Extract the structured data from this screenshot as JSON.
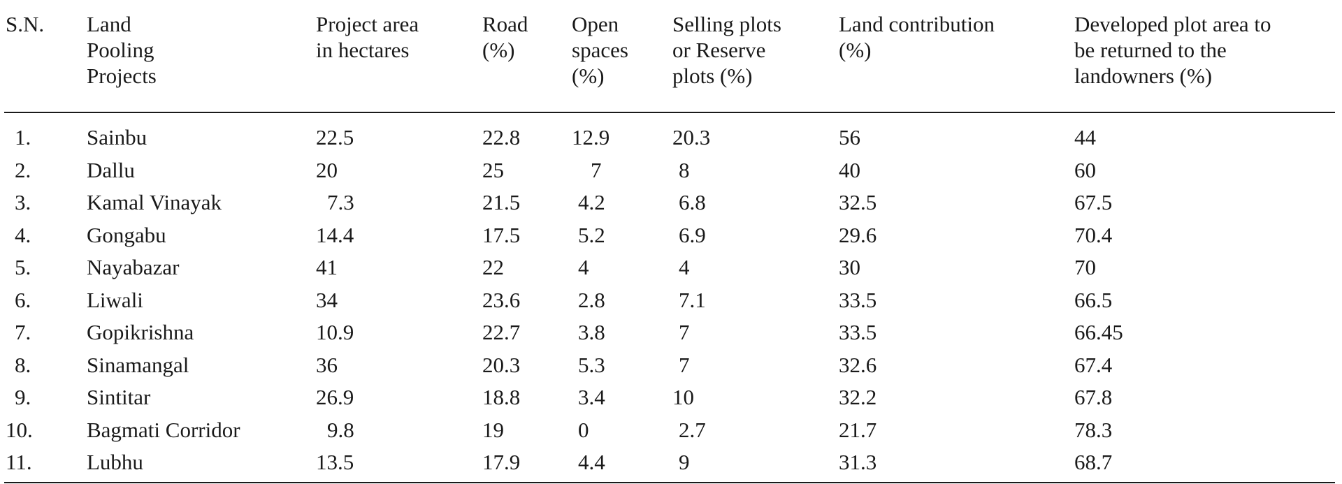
{
  "table": {
    "headers": [
      "S.N.",
      "Land\nPooling\nProjects",
      "Project area\nin hectares",
      "Road\n(%)",
      "Open\nspaces\n(%)",
      "Selling plots\nor Reserve\nplots (%)",
      "Land contribution\n(%)",
      "Developed plot area to\nbe returned to the\nlandowners (%)"
    ],
    "rows": [
      [
        "1.",
        "Sainbu",
        "22.5",
        "22.8",
        "12.9",
        "20.3",
        "56",
        "44"
      ],
      [
        "2.",
        "Dallu",
        "20",
        "25",
        "7",
        "8",
        "40",
        "60"
      ],
      [
        "3.",
        "Kamal Vinayak",
        "7.3",
        "21.5",
        "4.2",
        "6.8",
        "32.5",
        "67.5"
      ],
      [
        "4.",
        "Gongabu",
        "14.4",
        "17.5",
        "5.2",
        "6.9",
        "29.6",
        "70.4"
      ],
      [
        "5.",
        "Nayabazar",
        "41",
        "22",
        "4",
        "4",
        "30",
        "70"
      ],
      [
        "6.",
        "Liwali",
        "34",
        "23.6",
        "2.8",
        "7.1",
        "33.5",
        "66.5"
      ],
      [
        "7.",
        "Gopikrishna",
        "10.9",
        "22.7",
        "3.8",
        "7",
        "33.5",
        "66.45"
      ],
      [
        "8.",
        "Sinamangal",
        "36",
        "20.3",
        "5.3",
        "7",
        "32.6",
        "67.4"
      ],
      [
        "9.",
        "Sintitar",
        "26.9",
        "18.8",
        "3.4",
        "10",
        "32.2",
        "67.8"
      ],
      [
        "10.",
        "Bagmati Corridor",
        "9.8",
        "19",
        "0",
        "2.7",
        "21.7",
        "78.3"
      ],
      [
        "11.",
        "Lubhu",
        "13.5",
        "17.9",
        "4.4",
        "9",
        "31.3",
        "68.7"
      ]
    ]
  }
}
